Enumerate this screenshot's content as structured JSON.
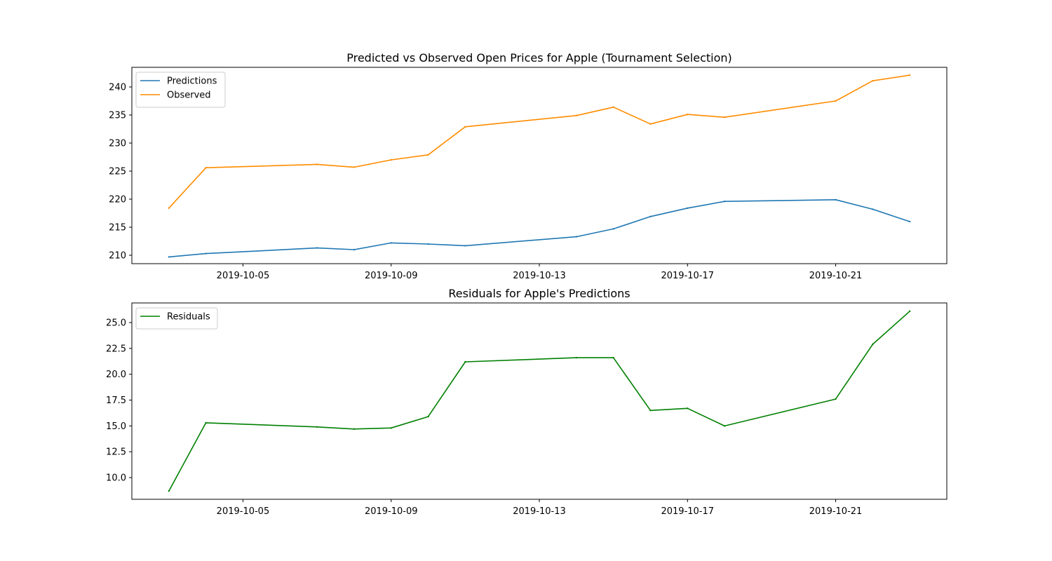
{
  "chart_data": [
    {
      "type": "line",
      "title": "Predicted vs Observed Open Prices for Apple (Tournament Selection)",
      "xlabel": "",
      "ylabel": "",
      "x": [
        "2019-10-03",
        "2019-10-04",
        "2019-10-07",
        "2019-10-08",
        "2019-10-09",
        "2019-10-10",
        "2019-10-11",
        "2019-10-14",
        "2019-10-15",
        "2019-10-16",
        "2019-10-17",
        "2019-10-18",
        "2019-10-21",
        "2019-10-22",
        "2019-10-23"
      ],
      "xlim": [
        "2019-10-02T00:00",
        "2019-10-24T00:00"
      ],
      "xticks": [
        "2019-10-05",
        "2019-10-09",
        "2019-10-13",
        "2019-10-17",
        "2019-10-21"
      ],
      "ylim": [
        208.5,
        243.5
      ],
      "yticks": [
        210,
        215,
        220,
        225,
        230,
        235,
        240
      ],
      "yticklabels": [
        "210",
        "215",
        "220",
        "225",
        "230",
        "235",
        "240"
      ],
      "grid": false,
      "legend_position": "upper-left",
      "series": [
        {
          "name": "Predictions",
          "color": "#1f77b4",
          "values": [
            209.7,
            210.3,
            211.3,
            211.0,
            212.2,
            212.0,
            211.7,
            213.3,
            214.7,
            216.9,
            218.4,
            219.6,
            219.9,
            218.2,
            216.0
          ]
        },
        {
          "name": "Observed",
          "color": "#ff8c00",
          "values": [
            218.4,
            225.6,
            226.2,
            225.7,
            227.0,
            227.9,
            232.9,
            234.9,
            236.4,
            233.4,
            235.1,
            234.6,
            237.5,
            241.1,
            242.1
          ]
        }
      ]
    },
    {
      "type": "line",
      "title": "Residuals for Apple's Predictions",
      "xlabel": "",
      "ylabel": "",
      "x": [
        "2019-10-03",
        "2019-10-04",
        "2019-10-07",
        "2019-10-08",
        "2019-10-09",
        "2019-10-10",
        "2019-10-11",
        "2019-10-14",
        "2019-10-15",
        "2019-10-16",
        "2019-10-17",
        "2019-10-18",
        "2019-10-21",
        "2019-10-22",
        "2019-10-23"
      ],
      "xlim": [
        "2019-10-02T00:00",
        "2019-10-24T00:00"
      ],
      "xticks": [
        "2019-10-05",
        "2019-10-09",
        "2019-10-13",
        "2019-10-17",
        "2019-10-21"
      ],
      "ylim": [
        7.9,
        26.9
      ],
      "yticks": [
        10.0,
        12.5,
        15.0,
        17.5,
        20.0,
        22.5,
        25.0
      ],
      "yticklabels": [
        "10.0",
        "12.5",
        "15.0",
        "17.5",
        "20.0",
        "22.5",
        "25.0"
      ],
      "grid": false,
      "legend_position": "upper-left",
      "series": [
        {
          "name": "Residuals",
          "color": "#008000",
          "values": [
            8.7,
            15.3,
            14.9,
            14.7,
            14.8,
            15.9,
            21.2,
            21.6,
            21.6,
            16.5,
            16.7,
            15.0,
            17.6,
            22.9,
            26.1
          ]
        }
      ]
    }
  ]
}
